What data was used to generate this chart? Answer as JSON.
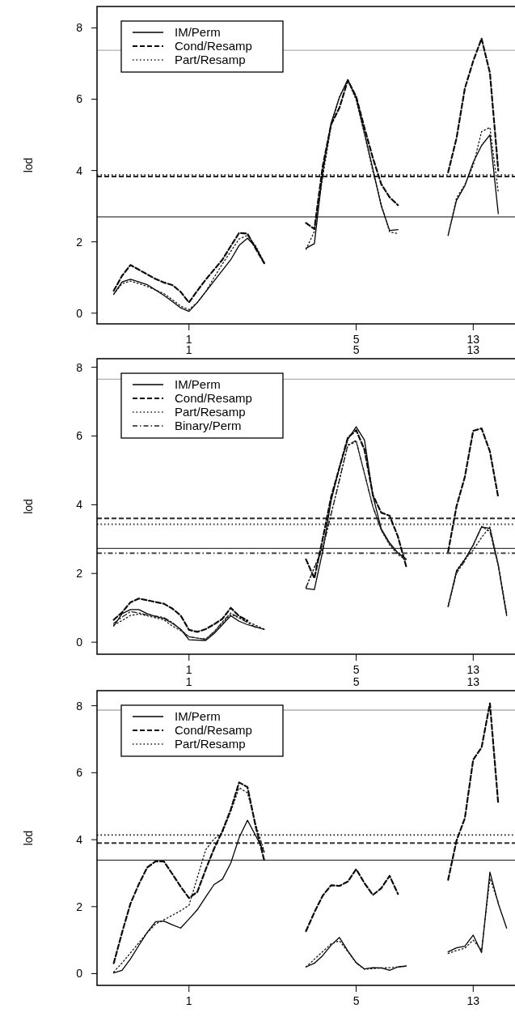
{
  "chart_data": [
    {
      "type": "line",
      "ylabel": "lod",
      "ylim": [
        -0.3,
        8.6
      ],
      "yticks": [
        0,
        2,
        4,
        6,
        8
      ],
      "categories": [
        null,
        null,
        null,
        null,
        null,
        null,
        null,
        null,
        null,
        null,
        null,
        "1",
        null,
        null,
        null,
        null,
        null,
        null,
        null,
        null,
        null,
        null,
        null,
        null,
        null,
        null,
        null,
        null,
        null,
        null,
        null,
        "5",
        null,
        null,
        null,
        null,
        null,
        null,
        null,
        null,
        null,
        null,
        null,
        null,
        null,
        "13",
        null,
        null,
        null,
        null,
        null
      ],
      "legend": "top left",
      "grid": false,
      "series": [
        {
          "name": "IM/Perm",
          "color": "#000000",
          "line_style": "solid",
          "values": [
            null,
            null,
            0.53,
            0.88,
            0.95,
            0.88,
            0.8,
            0.65,
            0.5,
            0.33,
            0.15,
            0.05,
            0.3,
            0.6,
            0.9,
            1.2,
            1.5,
            1.9,
            2.1,
            1.85,
            1.4,
            null,
            null,
            null,
            null,
            1.82,
            1.95,
            3.96,
            5.33,
            6.05,
            6.55,
            6.03,
            5.05,
            4.04,
            3.01,
            2.32,
            2.34,
            null,
            null,
            null,
            null,
            null,
            2.19,
            3.16,
            3.57,
            4.23,
            4.7,
            5.0,
            2.79,
            null,
            null
          ]
        },
        {
          "name": "Cond/Resamp",
          "color": "#0a0a0a",
          "line_style": "dashed",
          "values": [
            null,
            null,
            0.63,
            1.05,
            1.35,
            1.22,
            1.09,
            0.96,
            0.86,
            0.79,
            0.6,
            0.3,
            0.63,
            0.94,
            1.22,
            1.5,
            1.88,
            2.25,
            2.23,
            1.8,
            1.4,
            null,
            null,
            null,
            null,
            2.53,
            2.36,
            4.12,
            5.29,
            5.76,
            6.53,
            6.07,
            5.19,
            4.35,
            3.62,
            3.25,
            3.03,
            null,
            null,
            null,
            null,
            null,
            3.95,
            4.9,
            6.3,
            7.07,
            7.7,
            6.74,
            4.0,
            null,
            null
          ]
        },
        {
          "name": "Part/Resamp",
          "color": "#141414",
          "line_style": "dotted",
          "values": [
            null,
            null,
            0.53,
            0.83,
            0.9,
            0.83,
            0.75,
            0.65,
            0.55,
            0.38,
            0.2,
            0.1,
            0.3,
            0.6,
            1.0,
            1.38,
            1.73,
            2.08,
            2.18,
            1.88,
            1.43,
            null,
            null,
            null,
            null,
            1.79,
            2.29,
            3.82,
            5.24,
            6.07,
            6.53,
            5.98,
            5.01,
            3.97,
            3.05,
            2.28,
            2.23,
            null,
            null,
            null,
            null,
            null,
            2.18,
            3.23,
            3.6,
            4.14,
            5.09,
            5.21,
            3.39,
            null,
            null
          ]
        }
      ],
      "ref_lines": [
        {
          "axis": "y",
          "value": 3.83,
          "line_style": "dashed",
          "color": "#282828"
        },
        {
          "axis": "y",
          "value": 3.88,
          "line_style": "dotted",
          "color": "#323232"
        },
        {
          "axis": "y",
          "value": 2.7,
          "line_style": "solid",
          "color": "#3c3c3c"
        },
        {
          "axis": "y",
          "value": 7.37,
          "line_style": "solid",
          "color": "#b0b0b0"
        }
      ]
    },
    {
      "type": "line",
      "ylabel": "lod",
      "ylim": [
        -0.35,
        8.25
      ],
      "yticks": [
        0,
        2,
        4,
        6,
        8
      ],
      "categories": [
        null,
        null,
        null,
        null,
        null,
        null,
        null,
        null,
        null,
        null,
        null,
        "1",
        null,
        null,
        null,
        null,
        null,
        null,
        null,
        null,
        null,
        null,
        null,
        null,
        null,
        null,
        null,
        null,
        null,
        null,
        null,
        "5",
        null,
        null,
        null,
        null,
        null,
        null,
        null,
        null,
        null,
        null,
        null,
        null,
        null,
        "13",
        null,
        null,
        null,
        null,
        null
      ],
      "annotations": [
        {
          "text": "1",
          "x": "1"
        },
        {
          "text": "5",
          "x": "5"
        },
        {
          "text": "13",
          "x": "13"
        }
      ],
      "legend": "top left",
      "grid": false,
      "series": [
        {
          "name": "IM/Perm",
          "color": "#000000",
          "line_style": "solid",
          "values": [
            null,
            null,
            0.47,
            0.83,
            0.95,
            0.95,
            0.83,
            0.75,
            0.69,
            0.55,
            0.38,
            0.07,
            0.06,
            0.05,
            0.25,
            0.51,
            0.77,
            0.61,
            0.51,
            0.44,
            0.37,
            null,
            null,
            null,
            null,
            1.56,
            1.53,
            2.65,
            4.11,
            5.09,
            5.9,
            6.27,
            5.88,
            4.26,
            3.3,
            2.89,
            2.6,
            2.42,
            null,
            null,
            null,
            null,
            1.04,
            2.06,
            2.41,
            2.83,
            3.35,
            3.31,
            2.23,
            0.78,
            null
          ]
        },
        {
          "name": "Cond/Resamp",
          "color": "#0a0a0a",
          "line_style": "dashed",
          "values": [
            null,
            null,
            0.65,
            0.87,
            1.16,
            1.27,
            1.22,
            1.17,
            1.12,
            0.98,
            0.78,
            0.36,
            0.3,
            0.38,
            0.52,
            0.68,
            1.0,
            0.76,
            0.63,
            null,
            null,
            null,
            null,
            null,
            null,
            2.41,
            1.86,
            3.01,
            4.22,
            5.08,
            5.95,
            6.17,
            5.6,
            4.28,
            3.77,
            3.68,
            3.07,
            2.19,
            null,
            null,
            null,
            null,
            2.63,
            3.95,
            4.81,
            6.15,
            6.22,
            5.55,
            4.21,
            null,
            null
          ]
        },
        {
          "name": "Part/Resamp",
          "color": "#141414",
          "line_style": "dotted",
          "values": [
            null,
            null,
            0.5,
            0.63,
            0.78,
            0.82,
            0.77,
            0.71,
            0.65,
            0.47,
            0.34,
            0.16,
            0.12,
            0.09,
            0.3,
            0.56,
            0.81,
            0.71,
            0.6,
            0.49,
            0.38,
            null,
            null,
            null,
            null,
            1.59,
            2.18,
            2.77,
            3.74,
            4.73,
            5.72,
            5.84,
            4.9,
            3.96,
            3.26,
            2.83,
            2.55,
            2.38,
            null,
            null,
            null,
            null,
            1.04,
            2.09,
            2.42,
            2.68,
            3.05,
            3.35,
            2.25,
            0.85,
            null
          ]
        },
        {
          "name": "Binary/Perm",
          "color": "#1e1e1e",
          "line_style": "dashdot",
          "values": [
            null,
            null,
            0.55,
            0.73,
            0.89,
            0.85,
            0.79,
            0.76,
            0.72,
            0.58,
            0.36,
            0.16,
            0.12,
            0.09,
            0.3,
            0.59,
            0.85,
            0.71,
            0.57,
            0.43,
            null,
            null,
            null,
            null,
            null,
            1.59,
            2.16,
            2.72,
            3.71,
            4.72,
            5.74,
            5.87,
            4.9,
            3.93,
            3.27,
            2.86,
            2.59,
            2.4,
            null,
            null,
            null,
            null,
            1.04,
            2.01,
            2.36,
            2.82,
            3.37,
            3.22,
            2.24,
            0.78,
            null
          ]
        }
      ],
      "ref_lines": [
        {
          "axis": "y",
          "value": 3.6,
          "line_style": "dashed",
          "color": "#282828"
        },
        {
          "axis": "y",
          "value": 3.43,
          "line_style": "dotted",
          "color": "#323232"
        },
        {
          "axis": "y",
          "value": 2.73,
          "line_style": "solid",
          "color": "#3c3c3c"
        },
        {
          "axis": "y",
          "value": 2.59,
          "line_style": "dashdot",
          "color": "#464646"
        },
        {
          "axis": "y",
          "value": 7.65,
          "line_style": "solid",
          "color": "#b0b0b0"
        }
      ]
    },
    {
      "type": "line",
      "ylabel": "lod",
      "ylim": [
        -0.35,
        8.45
      ],
      "yticks": [
        0,
        2,
        4,
        6,
        8
      ],
      "categories": [
        null,
        null,
        null,
        null,
        null,
        null,
        null,
        null,
        null,
        null,
        null,
        "1",
        null,
        null,
        null,
        null,
        null,
        null,
        null,
        null,
        null,
        null,
        null,
        null,
        null,
        null,
        null,
        null,
        null,
        null,
        null,
        "5",
        null,
        null,
        null,
        null,
        null,
        null,
        null,
        null,
        null,
        null,
        null,
        null,
        null,
        "13",
        null,
        null,
        null,
        null,
        null
      ],
      "annotations": [
        {
          "text": "1",
          "x": "1"
        },
        {
          "text": "5",
          "x": "5"
        },
        {
          "text": "13",
          "x": "13"
        }
      ],
      "legend": "top left",
      "grid": false,
      "series": [
        {
          "name": "IM/Perm",
          "color": "#000000",
          "line_style": "solid",
          "values": [
            null,
            null,
            0.02,
            0.1,
            0.44,
            0.84,
            1.23,
            1.55,
            1.57,
            1.46,
            1.36,
            1.63,
            1.91,
            2.29,
            2.66,
            2.82,
            3.3,
            4.06,
            4.58,
            4.11,
            3.63,
            null,
            null,
            null,
            null,
            0.2,
            0.31,
            0.54,
            0.85,
            1.08,
            0.68,
            0.33,
            0.14,
            0.18,
            0.17,
            0.1,
            0.2,
            0.23,
            null,
            null,
            null,
            null,
            0.65,
            0.77,
            0.82,
            1.15,
            0.63,
            3.03,
            2.09,
            1.36,
            null
          ]
        },
        {
          "name": "Cond/Resamp",
          "color": "#0a0a0a",
          "line_style": "dashed",
          "values": [
            null,
            null,
            0.31,
            1.23,
            2.09,
            2.67,
            3.17,
            3.35,
            3.35,
            2.98,
            2.6,
            2.26,
            2.44,
            3.11,
            3.73,
            4.26,
            4.9,
            5.71,
            5.57,
            4.37,
            3.39,
            null,
            null,
            null,
            null,
            1.27,
            1.83,
            2.33,
            2.64,
            2.62,
            2.75,
            3.12,
            2.7,
            2.35,
            2.55,
            2.92,
            2.38,
            null,
            null,
            null,
            null,
            null,
            2.8,
            3.97,
            4.64,
            6.39,
            6.75,
            8.07,
            5.06,
            null,
            null
          ]
        },
        {
          "name": "Part/Resamp",
          "color": "#141414",
          "line_style": "dotted",
          "values": [
            null,
            null,
            0.05,
            0.32,
            0.62,
            0.92,
            1.22,
            1.48,
            1.61,
            1.74,
            1.88,
            2.04,
            2.87,
            3.7,
            4.02,
            4.21,
            4.84,
            5.55,
            5.4,
            4.44,
            3.66,
            null,
            null,
            null,
            null,
            0.2,
            0.43,
            0.66,
            0.89,
            0.98,
            0.66,
            0.32,
            0.13,
            0.15,
            0.17,
            0.18,
            0.2,
            0.22,
            null,
            null,
            null,
            null,
            0.6,
            0.69,
            0.76,
            1.0,
            0.7,
            2.85,
            2.13,
            null,
            null
          ]
        }
      ],
      "ref_lines": [
        {
          "axis": "y",
          "value": 4.14,
          "line_style": "dotted",
          "color": "#282828"
        },
        {
          "axis": "y",
          "value": 3.9,
          "line_style": "dashed",
          "color": "#323232"
        },
        {
          "axis": "y",
          "value": 3.39,
          "line_style": "solid",
          "color": "#3c3c3c"
        },
        {
          "axis": "y",
          "value": 7.87,
          "line_style": "solid",
          "color": "#b0b0b0"
        }
      ]
    }
  ]
}
